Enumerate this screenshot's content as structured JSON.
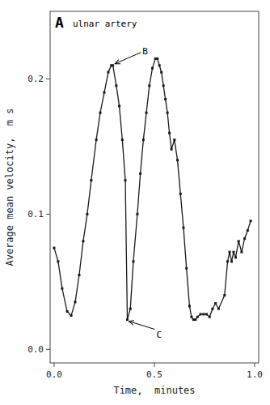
{
  "chart_data": {
    "type": "line",
    "title": "A",
    "subtitle": "ulnar artery",
    "xlabel": "Time,  minutes",
    "ylabel": "Average mean velocity,  m s",
    "color": "#1a1a1a",
    "marker": "square",
    "grid": false,
    "xlim": [
      -0.02,
      1.02
    ],
    "ylim": [
      -0.01,
      0.25
    ],
    "xticks": [
      {
        "value": 0.0,
        "label": "0.0"
      },
      0.5,
      {
        "value": 1.0,
        "label": "1.0"
      }
    ],
    "yticks": [
      {
        "value": 0.0,
        "label": "0.0"
      },
      0.1,
      0.2
    ],
    "annotations": [
      {
        "x": 0.295,
        "y": 0.21,
        "label": "B"
      },
      {
        "x": 0.365,
        "y": 0.022,
        "label": "C"
      }
    ],
    "x": [
      0.0,
      0.02,
      0.04,
      0.065,
      0.085,
      0.105,
      0.125,
      0.145,
      0.165,
      0.185,
      0.21,
      0.23,
      0.25,
      0.27,
      0.285,
      0.293,
      0.31,
      0.325,
      0.34,
      0.355,
      0.365,
      0.38,
      0.395,
      0.415,
      0.43,
      0.445,
      0.46,
      0.475,
      0.49,
      0.505,
      0.515,
      0.525,
      0.535,
      0.545,
      0.555,
      0.565,
      0.575,
      0.585,
      0.6,
      0.615,
      0.63,
      0.645,
      0.66,
      0.675,
      0.685,
      0.695,
      0.705,
      0.715,
      0.73,
      0.745,
      0.76,
      0.775,
      0.79,
      0.805,
      0.82,
      0.85,
      0.865,
      0.875,
      0.885,
      0.895,
      0.905,
      0.92,
      0.935,
      0.95,
      0.965,
      0.98
    ],
    "values": [
      0.075,
      0.065,
      0.045,
      0.028,
      0.025,
      0.035,
      0.055,
      0.08,
      0.1,
      0.125,
      0.155,
      0.175,
      0.19,
      0.205,
      0.21,
      0.21,
      0.195,
      0.18,
      0.155,
      0.125,
      0.022,
      0.03,
      0.065,
      0.1,
      0.13,
      0.155,
      0.175,
      0.195,
      0.208,
      0.215,
      0.215,
      0.21,
      0.205,
      0.195,
      0.185,
      0.175,
      0.16,
      0.148,
      0.155,
      0.14,
      0.115,
      0.09,
      0.06,
      0.032,
      0.024,
      0.022,
      0.022,
      0.024,
      0.026,
      0.026,
      0.026,
      0.024,
      0.03,
      0.034,
      0.03,
      0.04,
      0.065,
      0.072,
      0.065,
      0.072,
      0.068,
      0.08,
      0.072,
      0.082,
      0.088,
      0.095
    ]
  }
}
